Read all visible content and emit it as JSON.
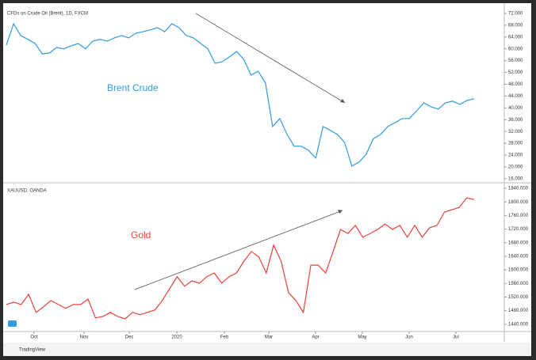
{
  "chart_data": [
    {
      "type": "line",
      "title": "CFDs on Crude Oil (Brent), 1D, FXCM",
      "series": [
        {
          "name": "Brent Crude",
          "color": "#2f9be0",
          "values": [
            61.3,
            68.5,
            64.5,
            63.2,
            61.8,
            58.3,
            58.6,
            60.5,
            60,
            61,
            61.8,
            60,
            62.6,
            63.2,
            62.6,
            63.7,
            64.5,
            63.7,
            65.3,
            65.8,
            66.4,
            67.2,
            65.8,
            68.5,
            67.2,
            64.5,
            63.7,
            61.8,
            60,
            55.1,
            55.6,
            57.3,
            59.1,
            56.4,
            51.1,
            52.4,
            48.4,
            33.7,
            36.4,
            31,
            27,
            27,
            25.6,
            23,
            33.7,
            32.4,
            31,
            28.3,
            20.3,
            21.6,
            24.3,
            29.6,
            31,
            33.7,
            35,
            36.4,
            36.4,
            39,
            41.7,
            40.4,
            39.6,
            41.7,
            42.3,
            41.2,
            42.5,
            43.1
          ]
        }
      ],
      "ylim": [
        14.9,
        74.4
      ],
      "yticks": [
        {
          "value": 72,
          "label": "72.000"
        },
        {
          "value": 68,
          "label": "68.000"
        },
        {
          "value": 64,
          "label": "64.000"
        },
        {
          "value": 60,
          "label": "60.000"
        },
        {
          "value": 56,
          "label": "56.000"
        },
        {
          "value": 52,
          "label": "52.000"
        },
        {
          "value": 48,
          "label": "48.000"
        },
        {
          "value": 44,
          "label": "44.000"
        },
        {
          "value": 40,
          "label": "40.000"
        },
        {
          "value": 36,
          "label": "36.000"
        },
        {
          "value": 32,
          "label": "32.000"
        },
        {
          "value": 28,
          "label": "28.000"
        },
        {
          "value": 24,
          "label": "24.000"
        },
        {
          "value": 20,
          "label": "20.000"
        },
        {
          "value": 16,
          "label": "16.000"
        }
      ],
      "grid": false
    },
    {
      "type": "line",
      "title": "XAUUSD, OANDA",
      "series": [
        {
          "name": "Gold",
          "color": "#e8413a",
          "values": [
            1498,
            1505,
            1498,
            1528,
            1475,
            1491,
            1510,
            1498,
            1487,
            1498,
            1498,
            1514,
            1459,
            1463,
            1475,
            1463,
            1456,
            1475,
            1468,
            1475,
            1482,
            1510,
            1545,
            1580,
            1552,
            1568,
            1561,
            1580,
            1591,
            1561,
            1580,
            1591,
            1626,
            1654,
            1638,
            1591,
            1673,
            1626,
            1533,
            1510,
            1475,
            1614,
            1614,
            1591,
            1654,
            1719,
            1707,
            1731,
            1696,
            1707,
            1719,
            1735,
            1719,
            1731,
            1696,
            1731,
            1696,
            1724,
            1731,
            1770,
            1777,
            1784,
            1812,
            1807
          ]
        }
      ],
      "ylim": [
        1421,
        1854
      ],
      "yticks": [
        {
          "value": 1840,
          "label": "1840.000"
        },
        {
          "value": 1800,
          "label": "1800.000"
        },
        {
          "value": 1760,
          "label": "1760.000"
        },
        {
          "value": 1720,
          "label": "1720.000"
        },
        {
          "value": 1680,
          "label": "1680.000"
        },
        {
          "value": 1640,
          "label": "1640.000"
        },
        {
          "value": 1600,
          "label": "1600.000"
        },
        {
          "value": 1560,
          "label": "1560.000"
        },
        {
          "value": 1520,
          "label": "1520.000"
        },
        {
          "value": 1480,
          "label": "1480.000"
        },
        {
          "value": 1440,
          "label": "1440.000"
        }
      ],
      "xtick_labels": [
        "Oct",
        "Nov",
        "Dec",
        "2020",
        "Feb",
        "Mar",
        "Apr",
        "May",
        "Jun",
        "Jul"
      ],
      "grid": false
    }
  ],
  "footer": "TradingView"
}
